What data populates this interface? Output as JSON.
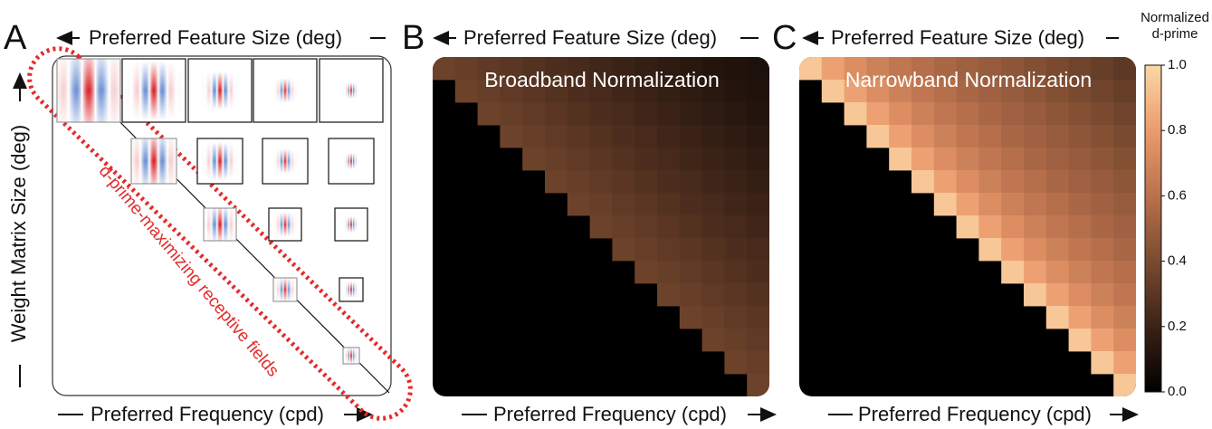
{
  "panels": [
    {
      "letter": "A",
      "top_label": "Preferred Feature Size (deg)",
      "bottom_label": "Preferred Frequency (cpd)",
      "left_label": "Weight Matrix Size (deg)",
      "annotation": "d-prime-maximizing receptive fields"
    },
    {
      "letter": "B",
      "top_label": "Preferred Feature Size (deg)",
      "bottom_label": "Preferred Frequency (cpd)",
      "title": "Broadband Normalization",
      "heatmap": [
        [
          0.36,
          0.34,
          0.32,
          0.3,
          0.28,
          0.26,
          0.24,
          0.22,
          0.2,
          0.18,
          0.16,
          0.14,
          0.12,
          0.11,
          0.1
        ],
        [
          null,
          0.36,
          0.34,
          0.32,
          0.3,
          0.28,
          0.26,
          0.24,
          0.22,
          0.2,
          0.18,
          0.16,
          0.14,
          0.12,
          0.11
        ],
        [
          null,
          null,
          0.36,
          0.34,
          0.32,
          0.3,
          0.28,
          0.26,
          0.24,
          0.22,
          0.2,
          0.18,
          0.16,
          0.14,
          0.12
        ],
        [
          null,
          null,
          null,
          0.36,
          0.34,
          0.32,
          0.3,
          0.28,
          0.26,
          0.24,
          0.22,
          0.2,
          0.18,
          0.16,
          0.14
        ],
        [
          null,
          null,
          null,
          null,
          0.36,
          0.34,
          0.32,
          0.3,
          0.28,
          0.26,
          0.24,
          0.22,
          0.2,
          0.18,
          0.16
        ],
        [
          null,
          null,
          null,
          null,
          null,
          0.36,
          0.34,
          0.32,
          0.3,
          0.28,
          0.26,
          0.24,
          0.22,
          0.2,
          0.18
        ],
        [
          null,
          null,
          null,
          null,
          null,
          null,
          0.36,
          0.34,
          0.32,
          0.3,
          0.28,
          0.26,
          0.24,
          0.22,
          0.2
        ],
        [
          null,
          null,
          null,
          null,
          null,
          null,
          null,
          0.36,
          0.34,
          0.32,
          0.3,
          0.28,
          0.26,
          0.24,
          0.22
        ],
        [
          null,
          null,
          null,
          null,
          null,
          null,
          null,
          null,
          0.36,
          0.34,
          0.32,
          0.3,
          0.28,
          0.26,
          0.24
        ],
        [
          null,
          null,
          null,
          null,
          null,
          null,
          null,
          null,
          null,
          0.36,
          0.34,
          0.32,
          0.3,
          0.28,
          0.26
        ],
        [
          null,
          null,
          null,
          null,
          null,
          null,
          null,
          null,
          null,
          null,
          0.36,
          0.34,
          0.32,
          0.3,
          0.28
        ],
        [
          null,
          null,
          null,
          null,
          null,
          null,
          null,
          null,
          null,
          null,
          null,
          0.36,
          0.34,
          0.32,
          0.3
        ],
        [
          null,
          null,
          null,
          null,
          null,
          null,
          null,
          null,
          null,
          null,
          null,
          null,
          0.36,
          0.34,
          0.32
        ],
        [
          null,
          null,
          null,
          null,
          null,
          null,
          null,
          null,
          null,
          null,
          null,
          null,
          null,
          0.36,
          0.34
        ],
        [
          null,
          null,
          null,
          null,
          null,
          null,
          null,
          null,
          null,
          null,
          null,
          null,
          null,
          null,
          0.36
        ]
      ]
    },
    {
      "letter": "C",
      "top_label": "Preferred Feature Size (deg)",
      "bottom_label": "Preferred Frequency (cpd)",
      "title": "Narrowband Normalization",
      "heatmap": [
        [
          0.95,
          0.82,
          0.74,
          0.68,
          0.63,
          0.59,
          0.55,
          0.52,
          0.49,
          0.46,
          0.43,
          0.4,
          0.37,
          0.34,
          0.31
        ],
        [
          null,
          0.95,
          0.82,
          0.74,
          0.68,
          0.63,
          0.59,
          0.55,
          0.52,
          0.49,
          0.46,
          0.43,
          0.4,
          0.37,
          0.34
        ],
        [
          null,
          null,
          0.95,
          0.82,
          0.74,
          0.68,
          0.63,
          0.59,
          0.55,
          0.52,
          0.49,
          0.46,
          0.43,
          0.4,
          0.37
        ],
        [
          null,
          null,
          null,
          0.95,
          0.82,
          0.74,
          0.68,
          0.63,
          0.59,
          0.55,
          0.52,
          0.49,
          0.46,
          0.43,
          0.4
        ],
        [
          null,
          null,
          null,
          null,
          0.95,
          0.82,
          0.74,
          0.68,
          0.63,
          0.59,
          0.55,
          0.52,
          0.49,
          0.46,
          0.43
        ],
        [
          null,
          null,
          null,
          null,
          null,
          0.95,
          0.82,
          0.74,
          0.68,
          0.63,
          0.59,
          0.55,
          0.52,
          0.49,
          0.46
        ],
        [
          null,
          null,
          null,
          null,
          null,
          null,
          0.95,
          0.82,
          0.74,
          0.68,
          0.63,
          0.59,
          0.55,
          0.52,
          0.49
        ],
        [
          null,
          null,
          null,
          null,
          null,
          null,
          null,
          0.95,
          0.82,
          0.74,
          0.68,
          0.63,
          0.59,
          0.55,
          0.52
        ],
        [
          null,
          null,
          null,
          null,
          null,
          null,
          null,
          null,
          0.95,
          0.82,
          0.74,
          0.68,
          0.63,
          0.59,
          0.55
        ],
        [
          null,
          null,
          null,
          null,
          null,
          null,
          null,
          null,
          null,
          0.95,
          0.82,
          0.74,
          0.68,
          0.63,
          0.59
        ],
        [
          null,
          null,
          null,
          null,
          null,
          null,
          null,
          null,
          null,
          null,
          0.95,
          0.82,
          0.74,
          0.68,
          0.63
        ],
        [
          null,
          null,
          null,
          null,
          null,
          null,
          null,
          null,
          null,
          null,
          null,
          0.95,
          0.82,
          0.74,
          0.68
        ],
        [
          null,
          null,
          null,
          null,
          null,
          null,
          null,
          null,
          null,
          null,
          null,
          null,
          0.95,
          0.82,
          0.74
        ],
        [
          null,
          null,
          null,
          null,
          null,
          null,
          null,
          null,
          null,
          null,
          null,
          null,
          null,
          0.95,
          0.82
        ],
        [
          null,
          null,
          null,
          null,
          null,
          null,
          null,
          null,
          null,
          null,
          null,
          null,
          null,
          null,
          0.95
        ]
      ]
    }
  ],
  "colorbar": {
    "title": [
      "Normalized",
      "d-prime"
    ],
    "lim": [
      0,
      1
    ],
    "ticks": [
      {
        "value": 0,
        "label": "0.0"
      },
      {
        "value": 0.2,
        "label": "0.2"
      },
      {
        "value": 0.4,
        "label": "0.4"
      },
      {
        "value": 0.6,
        "label": "0.6"
      },
      {
        "value": 0.8,
        "label": "0.8"
      },
      {
        "value": 1,
        "label": "1.0"
      }
    ],
    "colors": [
      "#000000",
      "#3a2216",
      "#7a4a30",
      "#b8714c",
      "#eb9b6c",
      "#fbd6a6"
    ]
  }
}
